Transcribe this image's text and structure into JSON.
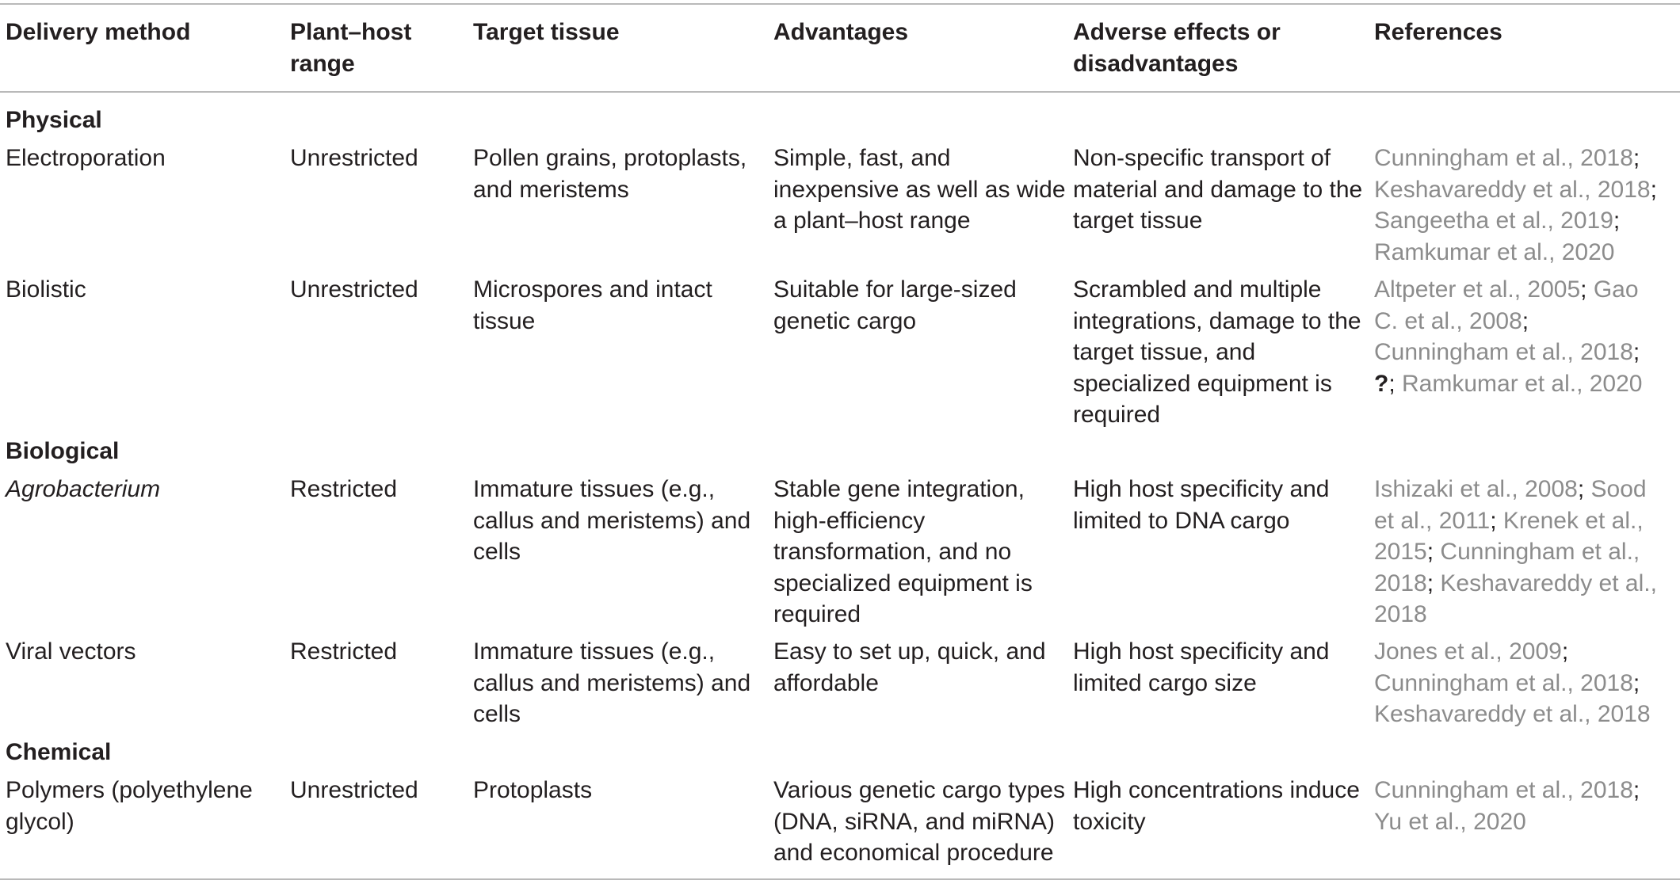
{
  "columns": [
    {
      "key": "method",
      "label_lines": [
        "Delivery method"
      ]
    },
    {
      "key": "range",
      "label_lines": [
        "Plant–host",
        "range"
      ]
    },
    {
      "key": "tissue",
      "label_lines": [
        "Target tissue"
      ]
    },
    {
      "key": "advantages",
      "label_lines": [
        "Advantages"
      ]
    },
    {
      "key": "adverse",
      "label_lines": [
        "Adverse effects or",
        "disadvantages"
      ]
    },
    {
      "key": "references",
      "label_lines": [
        "References"
      ]
    }
  ],
  "sections": {
    "physical": "Physical",
    "biological": "Biological",
    "chemical": "Chemical"
  },
  "rows": {
    "electroporation": {
      "method": [
        "Electroporation"
      ],
      "range": [
        "Unrestricted"
      ],
      "tissue": [
        "Pollen grains, protoplasts,",
        "and meristems"
      ],
      "advantages": [
        "Simple, fast, and",
        "inexpensive as well as wide",
        "a plant–host range"
      ],
      "adverse": [
        "Non-specific transport of",
        "material and damage to the",
        "target tissue"
      ],
      "references": [
        [
          {
            "t": "Cunningham et al., 2018",
            "k": "ref"
          },
          {
            "t": ";",
            "k": "sep"
          }
        ],
        [
          {
            "t": "Keshavareddy et al., 2018",
            "k": "ref"
          },
          {
            "t": ";",
            "k": "sep"
          }
        ],
        [
          {
            "t": "Sangeetha et al., 2019",
            "k": "ref"
          },
          {
            "t": ";",
            "k": "sep"
          }
        ],
        [
          {
            "t": "Ramkumar et al., 2020",
            "k": "ref"
          }
        ]
      ]
    },
    "biolistic": {
      "method": [
        "Biolistic"
      ],
      "range": [
        "Unrestricted"
      ],
      "tissue": [
        "Microspores and intact",
        "tissue"
      ],
      "advantages": [
        "Suitable for large-sized",
        "genetic cargo"
      ],
      "adverse": [
        "Scrambled and multiple",
        "integrations, damage to the",
        "target tissue, and",
        "specialized equipment is",
        "required"
      ],
      "references": [
        [
          {
            "t": "Altpeter et al., 2005",
            "k": "ref"
          },
          {
            "t": "; ",
            "k": "sep"
          },
          {
            "t": "Gao",
            "k": "ref"
          }
        ],
        [
          {
            "t": "C. et al., 2008",
            "k": "ref"
          },
          {
            "t": ";",
            "k": "sep"
          }
        ],
        [
          {
            "t": "Cunningham et al., 2018",
            "k": "ref"
          },
          {
            "t": ";",
            "k": "sep"
          }
        ],
        [
          {
            "t": "?",
            "k": "q"
          },
          {
            "t": "; ",
            "k": "sep"
          },
          {
            "t": "Ramkumar et al., 2020",
            "k": "ref"
          }
        ]
      ]
    },
    "agrobacterium": {
      "method": [
        "Agrobacterium"
      ],
      "range": [
        "Restricted"
      ],
      "tissue": [
        "Immature tissues (e.g.,",
        "callus and meristems) and",
        "cells"
      ],
      "advantages": [
        "Stable gene integration,",
        "high-efficiency",
        "transformation, and no",
        "specialized equipment is",
        "required"
      ],
      "adverse": [
        "High host specificity and",
        "limited to DNA cargo"
      ],
      "references": [
        [
          {
            "t": "Ishizaki et al., 2008",
            "k": "ref"
          },
          {
            "t": "; ",
            "k": "sep"
          },
          {
            "t": "Sood",
            "k": "ref"
          }
        ],
        [
          {
            "t": "et al., 2011",
            "k": "ref"
          },
          {
            "t": "; ",
            "k": "sep"
          },
          {
            "t": "Krenek et al.,",
            "k": "ref"
          }
        ],
        [
          {
            "t": "2015",
            "k": "ref"
          },
          {
            "t": "; ",
            "k": "sep"
          },
          {
            "t": "Cunningham et al.,",
            "k": "ref"
          }
        ],
        [
          {
            "t": "2018",
            "k": "ref"
          },
          {
            "t": "; ",
            "k": "sep"
          },
          {
            "t": "Keshavareddy et al.,",
            "k": "ref"
          }
        ],
        [
          {
            "t": "2018",
            "k": "ref"
          }
        ]
      ]
    },
    "viral": {
      "method": [
        "Viral vectors"
      ],
      "range": [
        "Restricted"
      ],
      "tissue": [
        "Immature tissues (e.g.,",
        "callus and meristems) and",
        "cells"
      ],
      "advantages": [
        "Easy to set up, quick, and",
        "affordable"
      ],
      "adverse": [
        "High host specificity and",
        "limited cargo size"
      ],
      "references": [
        [
          {
            "t": "Jones et al., 2009",
            "k": "ref"
          },
          {
            "t": ";",
            "k": "sep"
          }
        ],
        [
          {
            "t": "Cunningham et al., 2018",
            "k": "ref"
          },
          {
            "t": ";",
            "k": "sep"
          }
        ],
        [
          {
            "t": "Keshavareddy et al., 2018",
            "k": "ref"
          }
        ]
      ]
    },
    "polymers": {
      "method": [
        "Polymers (polyethylene",
        "glycol)"
      ],
      "range": [
        "Unrestricted"
      ],
      "tissue": [
        "Protoplasts"
      ],
      "advantages": [
        "Various genetic cargo types",
        "(DNA, siRNA, and miRNA)",
        "and economical procedure"
      ],
      "adverse": [
        "High concentrations induce",
        "toxicity"
      ],
      "references": [
        [
          {
            "t": "Cunningham et al., 2018",
            "k": "ref"
          },
          {
            "t": ";",
            "k": "sep"
          }
        ],
        [
          {
            "t": "Yu et al., 2020",
            "k": "ref"
          }
        ]
      ]
    }
  }
}
